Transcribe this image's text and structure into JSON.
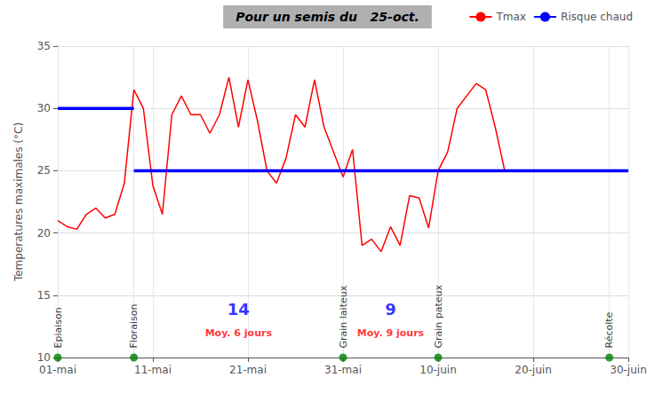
{
  "chart_data": {
    "type": "line",
    "title": "Pour un semis du   25-oct.",
    "title_background": "#b0b0b0",
    "title_color": "#000000",
    "y_label": "Temperatures maximales (°C)",
    "xlim": [
      1,
      61
    ],
    "xticks": [
      {
        "value": 1,
        "label": "01-mai"
      },
      {
        "value": 11,
        "label": "11-mai"
      },
      {
        "value": 21,
        "label": "21-mai"
      },
      {
        "value": 31,
        "label": "31-mai"
      },
      {
        "value": 41,
        "label": "10-juin"
      },
      {
        "value": 51,
        "label": "20-juin"
      },
      {
        "value": 61,
        "label": "30-juin"
      }
    ],
    "ylim": [
      10,
      35
    ],
    "yticks": [
      10,
      15,
      20,
      25,
      30,
      35
    ],
    "grid": true,
    "legend": "upper right",
    "series": [
      {
        "name": "Tmax",
        "color": "#ff0000",
        "x": [
          1,
          2,
          3,
          4,
          5,
          6,
          7,
          8,
          9,
          10,
          11,
          12,
          13,
          14,
          15,
          16,
          17,
          18,
          19,
          20,
          21,
          22,
          23,
          24,
          25,
          26,
          27,
          28,
          29,
          30,
          31,
          32,
          33,
          34,
          35,
          36,
          37,
          38,
          39,
          40,
          41,
          42,
          43,
          44,
          45,
          46,
          47,
          48,
          49,
          50
        ],
        "values": [
          21.0,
          20.5,
          20.3,
          21.5,
          22.0,
          21.2,
          21.5,
          24.0,
          31.5,
          30.0,
          23.8,
          21.5,
          29.5,
          31.0,
          29.5,
          29.5,
          28.0,
          29.5,
          32.5,
          28.5,
          32.3,
          29.0,
          25.0,
          24.0,
          26.0,
          29.5,
          28.5,
          32.3,
          28.5,
          26.5,
          24.5,
          26.7,
          19.0,
          19.5,
          18.5,
          20.5,
          19.0,
          23.0,
          22.8,
          20.4,
          25.0,
          26.5,
          30.0,
          31.0,
          32.0,
          31.5,
          28.5,
          25.0,
          25.0,
          25.0
        ]
      },
      {
        "name": "Risque chaud",
        "color": "#0000ff",
        "x": [
          1,
          9,
          9,
          9,
          61
        ],
        "values": [
          30,
          30,
          null,
          25,
          25
        ]
      }
    ],
    "phenology": [
      {
        "x": 1,
        "label": "Epiaison"
      },
      {
        "x": 9,
        "label": "Floraison"
      },
      {
        "x": 31,
        "label": "Grain laiteux"
      },
      {
        "x": 41,
        "label": "Grain pateux"
      },
      {
        "x": 59,
        "label": "Récolte"
      }
    ],
    "phenology_color": "#008000",
    "phenology_y": 10,
    "annotations": [
      {
        "x": 20,
        "y": 13.2,
        "text": "14",
        "color": "#0000ff"
      },
      {
        "x": 20,
        "y": 11.5,
        "text": "Moy. 6 jours",
        "color": "#ff0000"
      },
      {
        "x": 36,
        "y": 13.2,
        "text": "9",
        "color": "#0000ff"
      },
      {
        "x": 36,
        "y": 11.5,
        "text": "Moy. 9 jours",
        "color": "#ff0000"
      }
    ]
  }
}
